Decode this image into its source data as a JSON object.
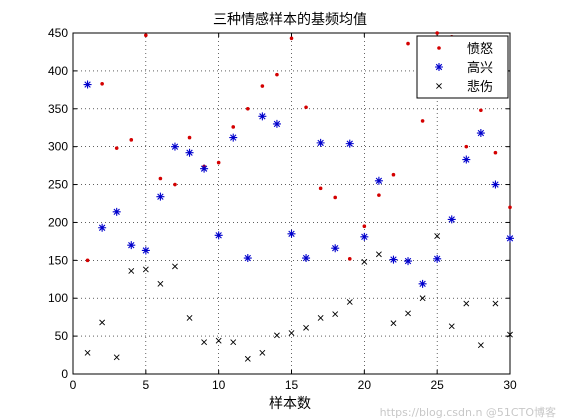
{
  "chart_data": {
    "type": "scatter",
    "title": "三种情感样本的基频均值",
    "xlabel": "样本数",
    "ylabel": "",
    "xlim": [
      0,
      30
    ],
    "ylim": [
      0,
      450
    ],
    "xticks": [
      0,
      5,
      10,
      15,
      20,
      25,
      30
    ],
    "yticks": [
      0,
      50,
      100,
      150,
      200,
      250,
      300,
      350,
      400,
      450
    ],
    "grid": true,
    "legend_position": "top-right",
    "series": [
      {
        "name": "愤怒",
        "marker": "dot",
        "color": "#d40000",
        "x": [
          1,
          2,
          3,
          4,
          5,
          6,
          7,
          8,
          9,
          10,
          11,
          12,
          13,
          14,
          15,
          16,
          17,
          18,
          19,
          20,
          21,
          22,
          23,
          24,
          25,
          26,
          27,
          28,
          29,
          30
        ],
        "y": [
          150,
          383,
          298,
          309,
          447,
          258,
          250,
          312,
          274,
          279,
          326,
          350,
          380,
          395,
          443,
          352,
          245,
          233,
          152,
          195,
          236,
          263,
          436,
          334,
          450,
          445,
          300,
          348,
          292,
          220
        ]
      },
      {
        "name": "高兴",
        "marker": "asterisk",
        "color": "#0000cc",
        "x": [
          1,
          2,
          3,
          4,
          5,
          6,
          7,
          8,
          9,
          10,
          11,
          12,
          13,
          14,
          15,
          16,
          17,
          18,
          19,
          20,
          21,
          22,
          23,
          24,
          25,
          26,
          27,
          28,
          29,
          30
        ],
        "y": [
          382,
          193,
          214,
          170,
          163,
          234,
          300,
          292,
          271,
          183,
          312,
          153,
          340,
          330,
          185,
          153,
          305,
          166,
          304,
          181,
          255,
          151,
          149,
          119,
          152,
          204,
          283,
          318,
          250,
          179
        ]
      },
      {
        "name": "悲伤",
        "marker": "x",
        "color": "#000000",
        "x": [
          1,
          2,
          3,
          4,
          5,
          6,
          7,
          8,
          9,
          10,
          11,
          12,
          13,
          14,
          15,
          16,
          17,
          18,
          19,
          20,
          21,
          22,
          23,
          24,
          25,
          26,
          27,
          28,
          29,
          30
        ],
        "y": [
          28,
          68,
          22,
          136,
          138,
          119,
          142,
          74,
          42,
          44,
          42,
          20,
          28,
          51,
          54,
          61,
          74,
          79,
          95,
          148,
          158,
          67,
          80,
          100,
          182,
          63,
          93,
          38,
          93,
          52
        ]
      }
    ]
  },
  "watermark": "https://blog.csdn.n @51CTO博客"
}
